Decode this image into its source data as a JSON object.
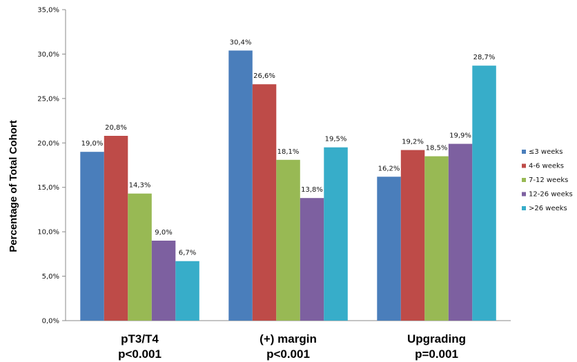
{
  "chart_data": {
    "type": "bar",
    "categories": [
      {
        "name": "pT3/T4",
        "pvalue": "p<0.001"
      },
      {
        "name": "(+) margin",
        "pvalue": "p<0.001"
      },
      {
        "name": "Upgrading",
        "pvalue": "p=0.001"
      }
    ],
    "series": [
      {
        "name": "≤3 weeks",
        "color": "#4a7ebb",
        "values": [
          19.0,
          30.4,
          16.2
        ],
        "labels": [
          "19,0%",
          "30,4%",
          "16,2%"
        ]
      },
      {
        "name": "4-6 weeks",
        "color": "#be4b48",
        "values": [
          20.8,
          26.6,
          19.2
        ],
        "labels": [
          "20,8%",
          "26,6%",
          "19,2%"
        ]
      },
      {
        "name": "7-12 weeks",
        "color": "#98b954",
        "values": [
          14.3,
          18.1,
          18.5
        ],
        "labels": [
          "14,3%",
          "18,1%",
          "18,5%"
        ]
      },
      {
        "name": "12-26 weeks",
        "color": "#7d60a0",
        "values": [
          9.0,
          13.8,
          19.9
        ],
        "labels": [
          "9,0%",
          "13,8%",
          "19,9%"
        ]
      },
      {
        "name": ">26 weeks",
        "color": "#37adc9",
        "values": [
          6.7,
          19.5,
          28.7
        ],
        "labels": [
          "6,7%",
          "19,5%",
          "28,7%"
        ]
      }
    ],
    "ylabel": "Percentage of Total Cohort",
    "ylim": [
      0,
      35
    ],
    "yticks": [
      {
        "value": 0,
        "label": "0,0%"
      },
      {
        "value": 5,
        "label": "5,0%"
      },
      {
        "value": 10,
        "label": "10,0%"
      },
      {
        "value": 15,
        "label": "15,0%"
      },
      {
        "value": 20,
        "label": "20,0%"
      },
      {
        "value": 25,
        "label": "25,0%"
      },
      {
        "value": 30,
        "label": "30,0%"
      },
      {
        "value": 35,
        "label": "35,0%"
      }
    ],
    "grid": false,
    "legend_position": "right"
  }
}
